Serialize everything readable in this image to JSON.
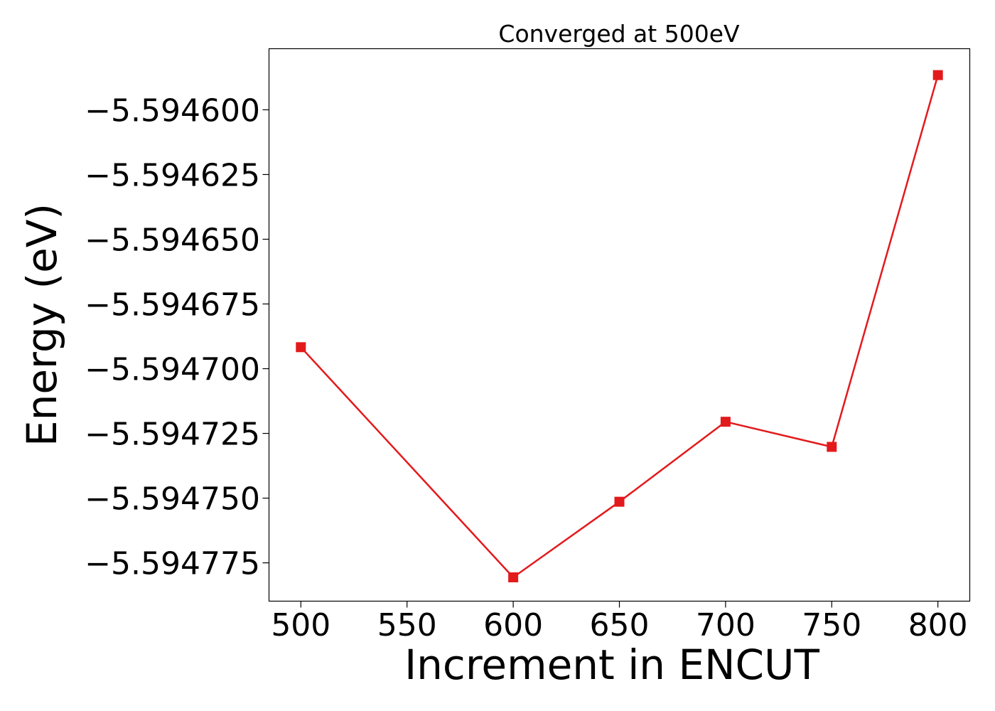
{
  "chart_data": {
    "type": "line",
    "title": "Converged at 500eV",
    "xlabel": "Increment in ENCUT",
    "ylabel": "Energy (eV)",
    "x": [
      500,
      600,
      650,
      700,
      750,
      800
    ],
    "series": [
      {
        "values": [
          -5.5946917,
          -5.5947806,
          -5.5947514,
          -5.5947205,
          -5.5947302,
          -5.5945866
        ],
        "color": "#e31a1c",
        "marker": "square"
      }
    ],
    "xlim": [
      485,
      815
    ],
    "ylim": [
      -5.5947898,
      -5.5945764
    ],
    "xticks": [
      500,
      550,
      600,
      650,
      700,
      750,
      800
    ],
    "xtick_labels": [
      "500",
      "550",
      "600",
      "650",
      "700",
      "750",
      "800"
    ],
    "yticks": [
      -5.5946,
      -5.594625,
      -5.59465,
      -5.594675,
      -5.5947,
      -5.594725,
      -5.59475,
      -5.594775
    ],
    "ytick_labels": [
      "−5.594600",
      "−5.594625",
      "−5.594650",
      "−5.594675",
      "−5.594700",
      "−5.594725",
      "−5.594750",
      "−5.594775"
    ],
    "grid": false,
    "legend": "none"
  }
}
